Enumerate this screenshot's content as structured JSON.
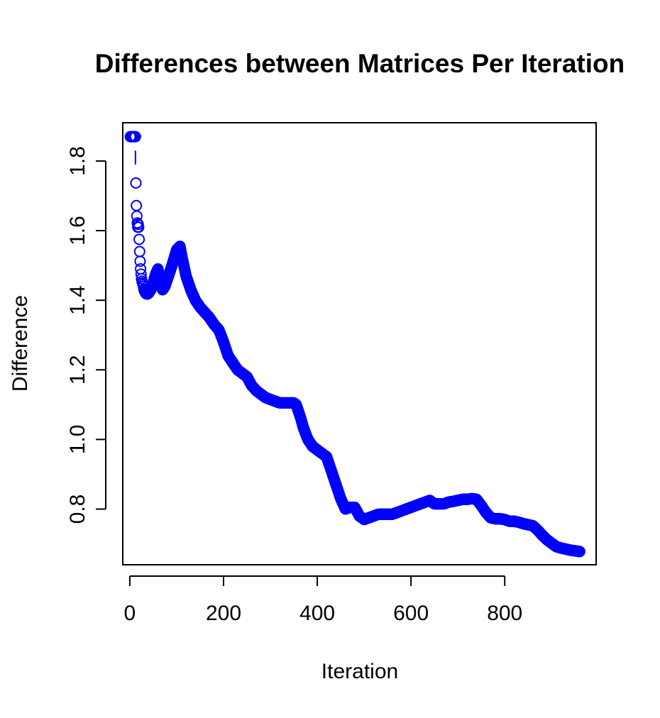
{
  "chart_data": {
    "type": "scatter",
    "title": "Differences between Matrices Per Iteration",
    "xlabel": "Iteration",
    "ylabel": "Difference",
    "xlim": [
      -15,
      995
    ],
    "ylim": [
      0.64,
      1.91
    ],
    "x_ticks": [
      0,
      200,
      400,
      600,
      800
    ],
    "y_ticks": [
      0.8,
      1.0,
      1.2,
      1.4,
      1.6,
      1.8
    ],
    "x_tick_labels": [
      "0",
      "200",
      "400",
      "600",
      "800"
    ],
    "y_tick_labels": [
      "0.8",
      "1.0",
      "1.2",
      "1.4",
      "1.6",
      "1.8"
    ],
    "grid": false,
    "legend": "none",
    "marker": "open-circle",
    "color": "#0000ff",
    "series": [
      {
        "x": [
          1,
          2,
          3,
          4,
          5,
          6,
          7,
          8,
          9,
          10,
          11,
          12,
          13,
          14,
          15,
          16,
          17,
          18,
          19,
          20,
          21,
          22,
          23,
          24,
          25,
          26,
          27,
          28,
          29,
          30,
          32,
          34,
          36,
          38,
          40,
          45,
          50,
          55,
          60,
          65,
          70,
          75,
          80,
          90,
          100,
          107,
          112,
          120,
          130,
          140,
          150,
          160,
          170,
          180,
          190,
          200,
          210,
          220,
          230,
          240,
          250,
          260,
          270,
          280,
          290,
          300,
          310,
          320,
          330,
          340,
          350,
          355,
          360,
          365,
          370,
          380,
          390,
          400,
          410,
          420,
          430,
          440,
          450,
          460,
          470,
          480,
          490,
          500,
          510,
          520,
          530,
          540,
          550,
          560,
          570,
          580,
          590,
          600,
          610,
          620,
          630,
          640,
          650,
          660,
          670,
          680,
          690,
          700,
          710,
          720,
          730,
          740,
          750,
          760,
          770,
          780,
          790,
          800,
          810,
          820,
          830,
          840,
          850,
          860,
          870,
          880,
          890,
          900,
          910,
          920,
          930,
          940,
          950,
          960
        ],
        "y": [
          1.87,
          1.87,
          1.87,
          1.87,
          1.87,
          1.87,
          1.87,
          1.87,
          1.87,
          1.87,
          1.87,
          1.87,
          1.737,
          1.672,
          1.642,
          1.622,
          1.61,
          1.618,
          1.61,
          1.575,
          1.54,
          1.512,
          1.49,
          1.475,
          1.462,
          1.455,
          1.45,
          1.445,
          1.44,
          1.432,
          1.425,
          1.42,
          1.418,
          1.418,
          1.42,
          1.43,
          1.45,
          1.475,
          1.49,
          1.45,
          1.43,
          1.44,
          1.46,
          1.5,
          1.545,
          1.555,
          1.52,
          1.47,
          1.43,
          1.4,
          1.38,
          1.365,
          1.35,
          1.33,
          1.315,
          1.28,
          1.24,
          1.22,
          1.2,
          1.19,
          1.18,
          1.155,
          1.14,
          1.13,
          1.12,
          1.115,
          1.11,
          1.105,
          1.105,
          1.105,
          1.105,
          1.1,
          1.08,
          1.06,
          1.035,
          1.0,
          0.98,
          0.97,
          0.96,
          0.95,
          0.91,
          0.87,
          0.83,
          0.8,
          0.805,
          0.805,
          0.78,
          0.77,
          0.775,
          0.78,
          0.785,
          0.785,
          0.785,
          0.785,
          0.79,
          0.795,
          0.8,
          0.805,
          0.81,
          0.815,
          0.82,
          0.825,
          0.815,
          0.815,
          0.815,
          0.82,
          0.822,
          0.825,
          0.828,
          0.828,
          0.83,
          0.828,
          0.81,
          0.79,
          0.775,
          0.772,
          0.772,
          0.77,
          0.765,
          0.765,
          0.762,
          0.758,
          0.755,
          0.752,
          0.74,
          0.725,
          0.712,
          0.702,
          0.692,
          0.688,
          0.685,
          0.682,
          0.68,
          0.678
        ]
      }
    ]
  }
}
